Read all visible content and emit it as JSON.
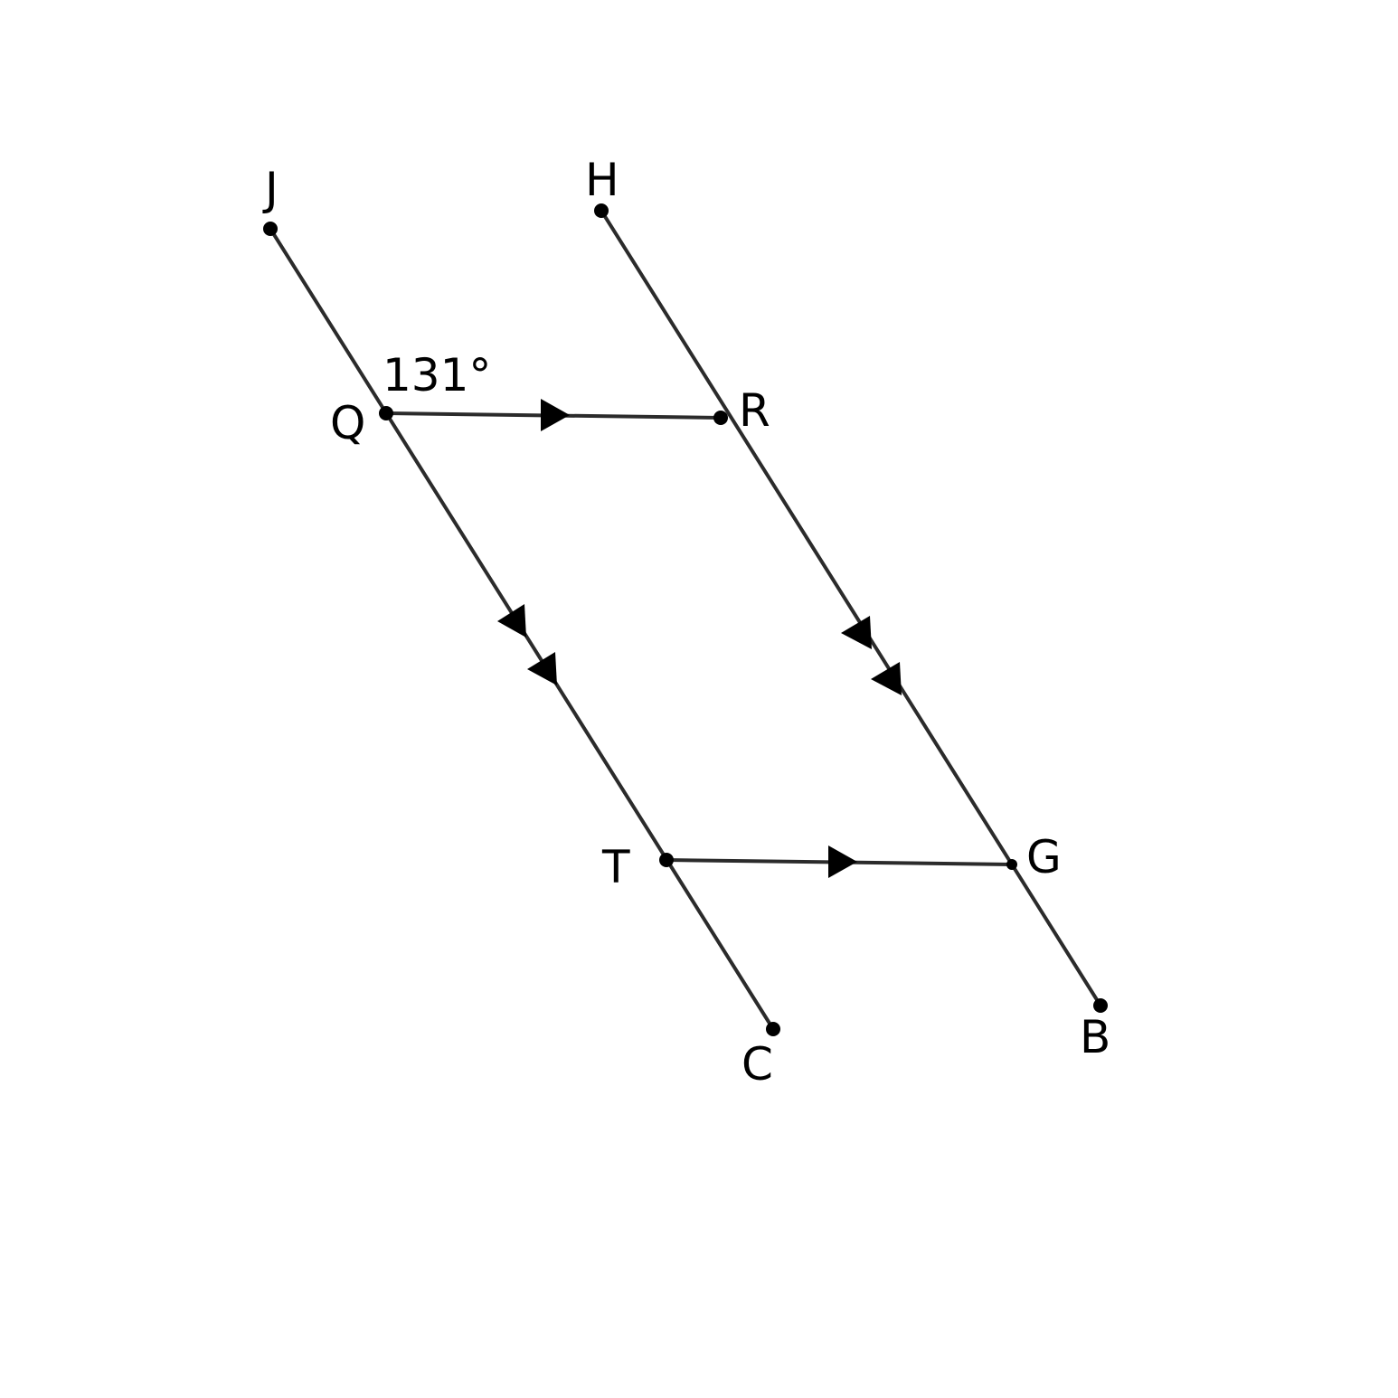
{
  "diagram": {
    "points": {
      "J": "J",
      "H": "H",
      "Q": "Q",
      "R": "R",
      "T": "T",
      "G": "G",
      "C": "C",
      "B": "B"
    },
    "angle_label": "131°",
    "segments": [
      "JC",
      "HB",
      "QR",
      "TG"
    ],
    "parallel_marks": {
      "single_arrow": [
        "QR",
        "TG"
      ],
      "double_arrow": [
        "JC",
        "HB"
      ]
    },
    "colors": {
      "line": "#2b2b2b",
      "point": "#000000",
      "text": "#000000"
    }
  }
}
